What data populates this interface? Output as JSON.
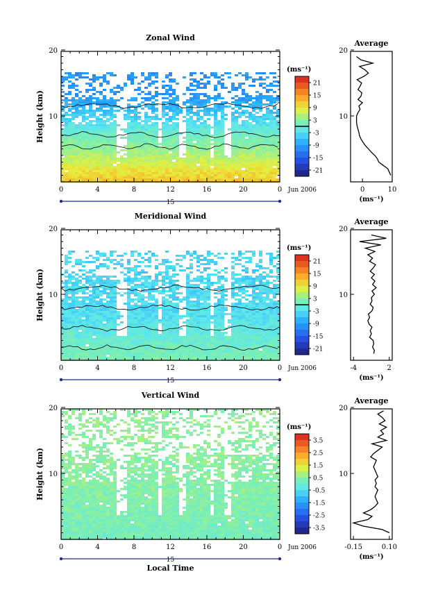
{
  "chart_data": [
    {
      "type": "heatmap",
      "title": "Zonal Wind",
      "ylabel": "Height (km)",
      "y_ticks": [
        "20",
        "10"
      ],
      "x_ticks": [
        "0",
        "4",
        "8",
        "12",
        "16",
        "20",
        "0"
      ],
      "date_day": "15",
      "date_label": "Jun 2006",
      "colorbar": {
        "unit": "(ms⁻¹)",
        "ticks": [
          "21",
          "15",
          "9",
          "3",
          "-3",
          "-9",
          "-15",
          "-21"
        ],
        "range": [
          -24,
          24
        ],
        "zero_line": 0
      },
      "field": {
        "low_value": 12,
        "mid_value": 0,
        "high_value": -10,
        "transition_km": 7.5,
        "top_data_km": 17,
        "seed": 3
      },
      "profile": {
        "title": "Average",
        "x_ticks": [
          "0",
          "10"
        ],
        "xlim": [
          -4,
          10
        ],
        "xlabel": "(ms⁻¹)",
        "y_ticks": [
          "20",
          "10"
        ],
        "heights_km": [
          1,
          1.5,
          2,
          2.5,
          3,
          3.5,
          4,
          4.5,
          5,
          5.5,
          6,
          6.5,
          7,
          7.5,
          8,
          8.5,
          9,
          9.5,
          10,
          10.5,
          11,
          11.5,
          12,
          12.5,
          13,
          13.5,
          14,
          14.5,
          15,
          15.5,
          16,
          16.5,
          17,
          17.5,
          18,
          18.5,
          19
        ],
        "values": [
          9.5,
          9.0,
          8.5,
          7.0,
          5.5,
          5.0,
          4.2,
          3.0,
          2.0,
          1.0,
          0.2,
          -0.5,
          -1.0,
          -1.2,
          -1.5,
          -1.8,
          -2.0,
          -2.0,
          -2.0,
          -1.5,
          -0.8,
          -1.2,
          0.0,
          -1.5,
          -0.5,
          -0.2,
          -1.5,
          -0.8,
          -0.3,
          -1.8,
          0.5,
          2.0,
          0.8,
          -1.0,
          3.5,
          -0.5,
          -2.0
        ]
      }
    },
    {
      "type": "heatmap",
      "title": "Meridional Wind",
      "ylabel": "Height (km)",
      "y_ticks": [
        "20",
        "10"
      ],
      "x_ticks": [
        "0",
        "4",
        "8",
        "12",
        "16",
        "20",
        "0"
      ],
      "date_day": "15",
      "date_label": "Jun 2006",
      "colorbar": {
        "unit": "(ms⁻¹)",
        "ticks": [
          "21",
          "15",
          "9",
          "3",
          "-3",
          "-9",
          "-15",
          "-21"
        ],
        "range": [
          -24,
          24
        ],
        "zero_line": 0
      },
      "field": {
        "low_value": 2,
        "mid_value": -3,
        "high_value": -4,
        "transition_km": 7.0,
        "top_data_km": 17,
        "seed": 11
      },
      "profile": {
        "title": "Average",
        "x_ticks": [
          "-4",
          "2"
        ],
        "xlim": [
          -4.5,
          2.5
        ],
        "xlabel": "(ms⁻¹)",
        "y_ticks": [
          "20",
          "10"
        ],
        "heights_km": [
          1,
          1.5,
          2,
          2.5,
          3,
          3.5,
          4,
          4.5,
          5,
          5.5,
          6,
          6.5,
          7,
          7.5,
          8,
          8.5,
          9,
          9.5,
          10,
          10.5,
          11,
          11.5,
          12,
          12.5,
          13,
          13.5,
          14,
          14.5,
          15,
          15.5,
          16,
          16.5,
          17,
          17.5,
          18,
          18.5,
          19
        ],
        "values": [
          -0.6,
          -0.5,
          -0.8,
          -0.6,
          -0.7,
          -1.3,
          -1.0,
          -1.2,
          -0.9,
          -1.4,
          -1.6,
          -1.3,
          -1.5,
          -0.9,
          -0.7,
          -1.2,
          -0.9,
          -1.0,
          -0.5,
          -0.9,
          -0.2,
          -0.8,
          -0.4,
          -1.0,
          -0.5,
          -1.2,
          -0.7,
          -0.3,
          -1.3,
          -0.8,
          -1.6,
          -0.4,
          -2.0,
          0.6,
          -3.0,
          1.5,
          -1.0
        ]
      }
    },
    {
      "type": "heatmap",
      "title": "Vertical Wind",
      "ylabel": "Height (km)",
      "xlabel": "Local Time",
      "y_ticks": [
        "20",
        "10"
      ],
      "x_ticks": [
        "0",
        "4",
        "8",
        "12",
        "16",
        "20",
        "0"
      ],
      "date_day": "15",
      "date_label": "Jun 2006",
      "colorbar": {
        "unit": "(ms⁻¹)",
        "ticks": [
          "3.5",
          "2.5",
          "1.5",
          "0.5",
          "-0.5",
          "-1.5",
          "-2.5",
          "-3.5"
        ],
        "range": [
          -4,
          4
        ],
        "zero_line": null
      },
      "field": {
        "low_value": 0.2,
        "mid_value": 0.4,
        "high_value": 0.5,
        "transition_km": 8,
        "top_data_km": 20,
        "seed": 23
      },
      "profile": {
        "title": "Average",
        "x_ticks": [
          "-0.15",
          "0.10"
        ],
        "xlim": [
          -0.17,
          0.12
        ],
        "xlabel": "(ms⁻¹)",
        "y_ticks": [
          "20",
          "10"
        ],
        "heights_km": [
          1,
          1.5,
          2,
          2.5,
          3,
          3.5,
          4,
          4.5,
          5,
          5.5,
          6,
          6.5,
          7,
          7.5,
          8,
          8.5,
          9,
          9.5,
          10,
          10.5,
          11,
          11.5,
          12,
          12.5,
          13,
          13.5,
          14,
          14.5,
          15,
          15.5,
          16,
          16.5,
          17,
          17.5,
          18,
          18.5,
          19,
          19.5
        ],
        "values": [
          0.1,
          0.05,
          -0.08,
          -0.15,
          -0.05,
          -0.02,
          -0.08,
          -0.03,
          0.0,
          0.02,
          0.01,
          0.0,
          0.01,
          0.02,
          0.0,
          0.01,
          0.0,
          0.02,
          0.01,
          0.0,
          -0.01,
          0.0,
          0.01,
          -0.03,
          -0.01,
          0.02,
          0.05,
          -0.02,
          0.08,
          0.02,
          0.06,
          0.04,
          0.08,
          0.03,
          0.07,
          0.05,
          0.02,
          0.06
        ]
      }
    }
  ]
}
